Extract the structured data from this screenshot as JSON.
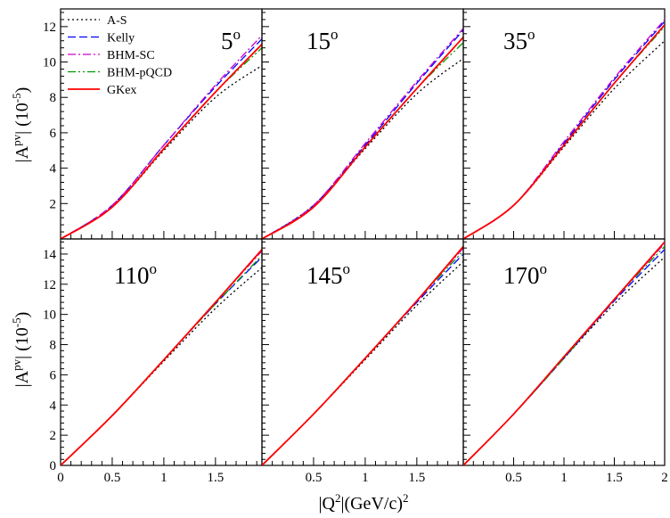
{
  "chart_data": {
    "type": "line",
    "layout": "grid-2x3",
    "xlabel": "|Q2|(GeV/c)2",
    "ylabel": "|Apv| (10-5)",
    "legend": {
      "placement": "top-left of first panel",
      "entries": [
        {
          "name": "A-S",
          "color": "#000000",
          "dash": "dotted"
        },
        {
          "name": "Kelly",
          "color": "#0000ff",
          "dash": "dashed"
        },
        {
          "name": "BHM-SC",
          "color": "#cc00cc",
          "dash": "dash-dot"
        },
        {
          "name": "BHM-pQCD",
          "color": "#009900",
          "dash": "dash-dot-dot"
        },
        {
          "name": "GKex",
          "color": "#ff0000",
          "dash": "solid"
        }
      ]
    },
    "rows": [
      {
        "ylim": [
          0,
          13
        ],
        "yticks": [
          2,
          4,
          6,
          8,
          10,
          12
        ]
      },
      {
        "ylim": [
          0,
          15
        ],
        "yticks": [
          0,
          2,
          4,
          6,
          8,
          10,
          12,
          14
        ]
      }
    ],
    "x_ticks_per_panel": [
      [
        "0",
        "0.5",
        "1",
        "1.5"
      ],
      [
        "0.5",
        "1",
        "1.5"
      ],
      [
        "0.5",
        "1",
        "1.5",
        "2"
      ]
    ],
    "panels": [
      {
        "angle": "5",
        "row": 0,
        "col": 0,
        "xlim": [
          0,
          1.95
        ],
        "series": [
          {
            "name": "A-S",
            "x": [
              0,
              0.5,
              1,
              1.5,
              1.95
            ],
            "y": [
              0,
              1.8,
              5.0,
              8.0,
              9.8
            ]
          },
          {
            "name": "Kelly",
            "x": [
              0,
              0.5,
              1,
              1.5,
              1.95
            ],
            "y": [
              0,
              1.9,
              5.3,
              8.6,
              11.3
            ]
          },
          {
            "name": "BHM-SC",
            "x": [
              0,
              0.5,
              1,
              1.5,
              1.95
            ],
            "y": [
              0,
              1.9,
              5.3,
              8.7,
              11.5
            ]
          },
          {
            "name": "BHM-pQCD",
            "x": [
              0,
              0.5,
              1,
              1.5,
              1.95
            ],
            "y": [
              0,
              1.8,
              5.1,
              8.3,
              10.8
            ]
          },
          {
            "name": "GKex",
            "x": [
              0,
              0.5,
              1,
              1.5,
              1.95
            ],
            "y": [
              0,
              1.8,
              5.1,
              8.3,
              11.0
            ]
          }
        ]
      },
      {
        "angle": "15",
        "row": 0,
        "col": 1,
        "xlim": [
          0,
          1.95
        ],
        "series": [
          {
            "name": "A-S",
            "x": [
              0,
              0.5,
              1,
              1.5,
              1.95
            ],
            "y": [
              0,
              1.9,
              5.1,
              8.2,
              10.2
            ]
          },
          {
            "name": "Kelly",
            "x": [
              0,
              0.5,
              1,
              1.5,
              1.95
            ],
            "y": [
              0,
              1.9,
              5.3,
              8.8,
              11.8
            ]
          },
          {
            "name": "BHM-SC",
            "x": [
              0,
              0.5,
              1,
              1.5,
              1.95
            ],
            "y": [
              0,
              1.9,
              5.4,
              8.9,
              11.9
            ]
          },
          {
            "name": "BHM-pQCD",
            "x": [
              0,
              0.5,
              1,
              1.5,
              1.95
            ],
            "y": [
              0,
              1.8,
              5.2,
              8.5,
              11.1
            ]
          },
          {
            "name": "GKex",
            "x": [
              0,
              0.5,
              1,
              1.5,
              1.95
            ],
            "y": [
              0,
              1.8,
              5.2,
              8.5,
              11.4
            ]
          }
        ]
      },
      {
        "angle": "35",
        "row": 0,
        "col": 2,
        "xlim": [
          0,
          2.0
        ],
        "series": [
          {
            "name": "A-S",
            "x": [
              0,
              0.5,
              1,
              1.5,
              2.0
            ],
            "y": [
              0,
              1.9,
              5.2,
              8.5,
              11.2
            ]
          },
          {
            "name": "Kelly",
            "x": [
              0,
              0.5,
              1,
              1.5,
              2.0
            ],
            "y": [
              0,
              1.9,
              5.4,
              9.0,
              12.3
            ]
          },
          {
            "name": "BHM-SC",
            "x": [
              0,
              0.5,
              1,
              1.5,
              2.0
            ],
            "y": [
              0,
              1.9,
              5.5,
              9.1,
              12.4
            ]
          },
          {
            "name": "BHM-pQCD",
            "x": [
              0,
              0.5,
              1,
              1.5,
              2.0
            ],
            "y": [
              0,
              1.9,
              5.3,
              8.8,
              12.0
            ]
          },
          {
            "name": "GKex",
            "x": [
              0,
              0.5,
              1,
              1.5,
              2.0
            ],
            "y": [
              0,
              1.9,
              5.3,
              8.8,
              12.1
            ]
          }
        ]
      },
      {
        "angle": "110",
        "row": 1,
        "col": 0,
        "xlim": [
          0,
          1.95
        ],
        "series": [
          {
            "name": "A-S",
            "x": [
              0,
              0.5,
              1,
              1.5,
              1.95
            ],
            "y": [
              0,
              3.3,
              6.9,
              10.4,
              13.1
            ]
          },
          {
            "name": "Kelly",
            "x": [
              0,
              0.5,
              1,
              1.5,
              1.95
            ],
            "y": [
              0,
              3.3,
              7.0,
              10.7,
              13.8
            ]
          },
          {
            "name": "BHM-SC",
            "x": [
              0,
              0.5,
              1,
              1.5,
              1.95
            ],
            "y": [
              0,
              3.3,
              7.0,
              10.8,
              14.2
            ]
          },
          {
            "name": "BHM-pQCD",
            "x": [
              0,
              0.5,
              1,
              1.5,
              1.95
            ],
            "y": [
              0,
              3.3,
              7.0,
              10.7,
              13.9
            ]
          },
          {
            "name": "GKex",
            "x": [
              0,
              0.5,
              1,
              1.5,
              1.95
            ],
            "y": [
              0,
              3.3,
              7.0,
              10.8,
              14.3
            ]
          }
        ]
      },
      {
        "angle": "145",
        "row": 1,
        "col": 1,
        "xlim": [
          0,
          1.95
        ],
        "series": [
          {
            "name": "A-S",
            "x": [
              0,
              0.5,
              1,
              1.5,
              1.95
            ],
            "y": [
              0,
              3.4,
              7.0,
              10.6,
              13.5
            ]
          },
          {
            "name": "Kelly",
            "x": [
              0,
              0.5,
              1,
              1.5,
              1.95
            ],
            "y": [
              0,
              3.4,
              7.1,
              10.8,
              14.0
            ]
          },
          {
            "name": "BHM-SC",
            "x": [
              0,
              0.5,
              1,
              1.5,
              1.95
            ],
            "y": [
              0,
              3.4,
              7.1,
              10.9,
              14.4
            ]
          },
          {
            "name": "BHM-pQCD",
            "x": [
              0,
              0.5,
              1,
              1.5,
              1.95
            ],
            "y": [
              0,
              3.4,
              7.1,
              10.9,
              14.2
            ]
          },
          {
            "name": "GKex",
            "x": [
              0,
              0.5,
              1,
              1.5,
              1.95
            ],
            "y": [
              0,
              3.4,
              7.1,
              10.9,
              14.5
            ]
          }
        ]
      },
      {
        "angle": "170",
        "row": 1,
        "col": 2,
        "xlim": [
          0,
          2.0
        ],
        "series": [
          {
            "name": "A-S",
            "x": [
              0,
              0.5,
              1,
              1.5,
              2.0
            ],
            "y": [
              0,
              3.4,
              7.1,
              10.7,
              13.8
            ]
          },
          {
            "name": "Kelly",
            "x": [
              0,
              0.5,
              1,
              1.5,
              2.0
            ],
            "y": [
              0,
              3.4,
              7.1,
              10.9,
              14.3
            ]
          },
          {
            "name": "BHM-SC",
            "x": [
              0,
              0.5,
              1,
              1.5,
              2.0
            ],
            "y": [
              0,
              3.4,
              7.2,
              11.0,
              14.7
            ]
          },
          {
            "name": "BHM-pQCD",
            "x": [
              0,
              0.5,
              1,
              1.5,
              2.0
            ],
            "y": [
              0,
              3.4,
              7.1,
              11.0,
              14.5
            ]
          },
          {
            "name": "GKex",
            "x": [
              0,
              0.5,
              1,
              1.5,
              2.0
            ],
            "y": [
              0,
              3.4,
              7.2,
              11.0,
              14.8
            ]
          }
        ]
      }
    ]
  }
}
